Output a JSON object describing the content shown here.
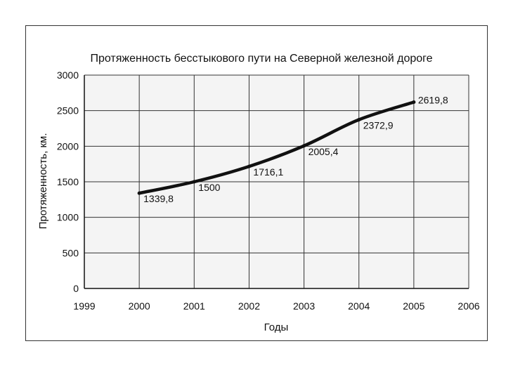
{
  "chart_data": {
    "type": "line",
    "title": "Протяженность бесстыкового пути на Северной железной дороге",
    "xlabel": "Годы",
    "ylabel": "Протяженность, км.",
    "xlim": [
      1999,
      2006
    ],
    "ylim": [
      0,
      3000
    ],
    "x_ticks": [
      "1999",
      "2000",
      "2001",
      "2002",
      "2003",
      "2004",
      "2005",
      "2006"
    ],
    "y_ticks": [
      "0",
      "500",
      "1000",
      "1500",
      "2000",
      "2500",
      "3000"
    ],
    "grid": true,
    "series": [
      {
        "x": [
          2000,
          2001,
          2002,
          2003,
          2004,
          2005
        ],
        "values": [
          1339.8,
          1500,
          1716.1,
          2005.4,
          2372.9,
          2619.8
        ],
        "labels": [
          "1339,8",
          "1500",
          "1716,1",
          "2005,4",
          "2372,9",
          "2619,8"
        ]
      }
    ]
  }
}
